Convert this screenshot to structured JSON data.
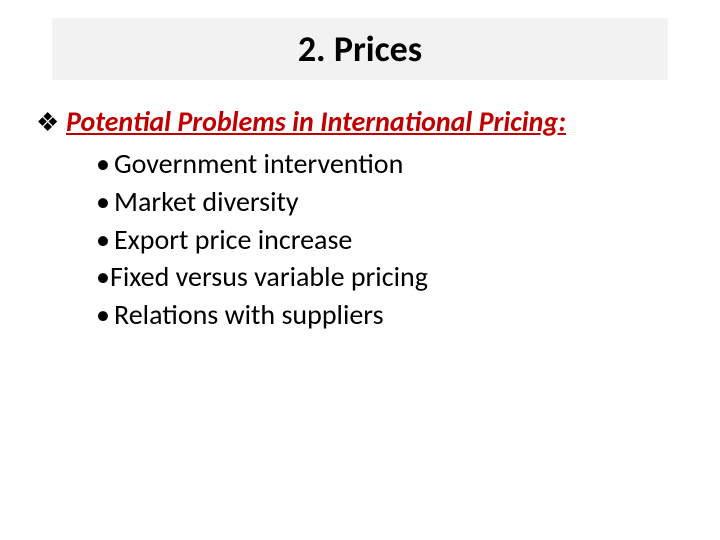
{
  "slide": {
    "title": "2. Prices",
    "heading": "Potential Problems in International Pricing:",
    "heading_color": "#c00000",
    "bullet_glyph": "❖",
    "dot_glyph": "•",
    "items": [
      "Government intervention",
      "Market diversity",
      "Export price increase",
      "Fixed versus variable pricing",
      "Relations with suppliers"
    ],
    "colors": {
      "title_bg": "#f2f2f2",
      "text": "#000000",
      "background": "#ffffff"
    },
    "fonts": {
      "title_size_pt": 36,
      "body_size_pt": 28,
      "family": "Calibri"
    }
  }
}
